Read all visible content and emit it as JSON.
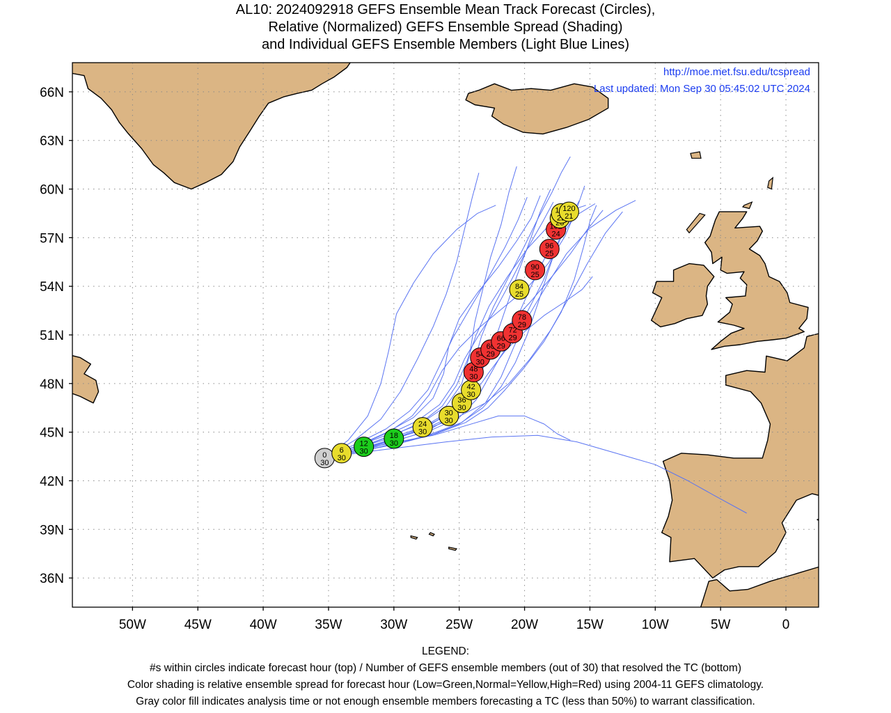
{
  "title": {
    "line1": "AL10: 2024092918 GEFS Ensemble Mean Track Forecast (Circles),",
    "line2": "Relative (Normalized) GEFS Ensemble Spread (Shading)",
    "line3": "and Individual GEFS Ensemble Members (Light Blue Lines)"
  },
  "credits": {
    "url": "http://moe.met.fsu.edu/tcspread",
    "updated": "Last updated: Mon Sep 30 05:45:02 UTC 2024"
  },
  "axes": {
    "lat_ticks": [
      {
        "value": 66,
        "label": "66N"
      },
      {
        "value": 63,
        "label": "63N"
      },
      {
        "value": 60,
        "label": "60N"
      },
      {
        "value": 57,
        "label": "57N"
      },
      {
        "value": 54,
        "label": "54N"
      },
      {
        "value": 51,
        "label": "51N"
      },
      {
        "value": 48,
        "label": "48N"
      },
      {
        "value": 45,
        "label": "45N"
      },
      {
        "value": 42,
        "label": "42N"
      },
      {
        "value": 39,
        "label": "39N"
      },
      {
        "value": 36,
        "label": "36N"
      }
    ],
    "lon_ticks": [
      {
        "value": -50,
        "label": "50W"
      },
      {
        "value": -45,
        "label": "45W"
      },
      {
        "value": -40,
        "label": "40W"
      },
      {
        "value": -35,
        "label": "35W"
      },
      {
        "value": -30,
        "label": "30W"
      },
      {
        "value": -25,
        "label": "25W"
      },
      {
        "value": -20,
        "label": "20W"
      },
      {
        "value": -15,
        "label": "15W"
      },
      {
        "value": -10,
        "label": "10W"
      },
      {
        "value": -5,
        "label": "5W"
      },
      {
        "value": 0,
        "label": "0"
      }
    ],
    "lat_range": [
      34.2,
      67.8
    ],
    "lon_range": [
      -54.6,
      2.5
    ],
    "grid": "dotted"
  },
  "colors": {
    "land": "#dbb584",
    "ocean": "#ffffff",
    "member_tracks": "#5a74f2",
    "low": "#1ccd1c",
    "normal": "#e8dc2c",
    "high": "#f03232",
    "not_classified": "#d0d0d0",
    "credit_text": "#1b3cf0"
  },
  "chart_data": {
    "type": "scatter",
    "description_fields": [
      "hour",
      "members",
      "spread"
    ],
    "points": [
      {
        "hour": 0,
        "members": 30,
        "spread": "gray",
        "lat": 43.4,
        "lon": -35.3
      },
      {
        "hour": 6,
        "members": 30,
        "spread": "normal",
        "lat": 43.7,
        "lon": -34.0
      },
      {
        "hour": 12,
        "members": 30,
        "spread": "low",
        "lat": 44.1,
        "lon": -32.3
      },
      {
        "hour": 18,
        "members": 30,
        "spread": "low",
        "lat": 44.6,
        "lon": -30.0
      },
      {
        "hour": 24,
        "members": 30,
        "spread": "normal",
        "lat": 45.3,
        "lon": -27.8
      },
      {
        "hour": 30,
        "members": 30,
        "spread": "normal",
        "lat": 46.0,
        "lon": -25.8
      },
      {
        "hour": 36,
        "members": 30,
        "spread": "normal",
        "lat": 46.8,
        "lon": -24.8
      },
      {
        "hour": 42,
        "members": 30,
        "spread": "normal",
        "lat": 47.6,
        "lon": -24.1
      },
      {
        "hour": 48,
        "members": 30,
        "spread": "high",
        "lat": 48.7,
        "lon": -23.9
      },
      {
        "hour": 54,
        "members": 30,
        "spread": "high",
        "lat": 49.6,
        "lon": -23.4
      },
      {
        "hour": 60,
        "members": 29,
        "spread": "high",
        "lat": 50.1,
        "lon": -22.6
      },
      {
        "hour": 66,
        "members": 29,
        "spread": "high",
        "lat": 50.6,
        "lon": -21.8
      },
      {
        "hour": 72,
        "members": 29,
        "spread": "high",
        "lat": 51.1,
        "lon": -20.9
      },
      {
        "hour": 78,
        "members": 29,
        "spread": "high",
        "lat": 51.9,
        "lon": -20.2
      },
      {
        "hour": 84,
        "members": 25,
        "spread": "normal",
        "lat": 53.8,
        "lon": -20.4
      },
      {
        "hour": 90,
        "members": 25,
        "spread": "high",
        "lat": 55.0,
        "lon": -19.2
      },
      {
        "hour": 96,
        "members": 25,
        "spread": "high",
        "lat": 56.3,
        "lon": -18.1
      },
      {
        "hour": 102,
        "members": 24,
        "spread": "high",
        "lat": 57.5,
        "lon": -17.6
      },
      {
        "hour": 108,
        "members": 23,
        "spread": "normal",
        "lat": 58.2,
        "lon": -17.3
      },
      {
        "hour": 114,
        "members": 22,
        "spread": "normal",
        "lat": 58.5,
        "lon": -17.2
      },
      {
        "hour": 120,
        "members": 21,
        "spread": "normal",
        "lat": 58.6,
        "lon": -16.6
      }
    ],
    "ensemble_members": [
      [
        [
          -35.3,
          43.4
        ],
        [
          -32.5,
          44.1
        ],
        [
          -30.0,
          44.7
        ],
        [
          -27.5,
          45.4
        ],
        [
          -25.5,
          46.2
        ],
        [
          -24.5,
          47.2
        ],
        [
          -24.0,
          48.5
        ],
        [
          -23.2,
          49.8
        ],
        [
          -22.0,
          50.9
        ],
        [
          -20.5,
          52.2
        ],
        [
          -19.5,
          54.0
        ],
        [
          -18.3,
          56.0
        ],
        [
          -17.5,
          57.8
        ],
        [
          -16.5,
          58.8
        ]
      ],
      [
        [
          -35.3,
          43.4
        ],
        [
          -32.3,
          44.0
        ],
        [
          -29.8,
          44.5
        ],
        [
          -27.2,
          45.1
        ],
        [
          -25.0,
          45.9
        ],
        [
          -23.7,
          47.0
        ],
        [
          -22.8,
          48.3
        ],
        [
          -21.9,
          49.6
        ],
        [
          -20.8,
          50.9
        ],
        [
          -19.8,
          52.4
        ],
        [
          -18.6,
          54.3
        ],
        [
          -17.6,
          56.3
        ],
        [
          -16.6,
          58.1
        ],
        [
          -15.8,
          59.3
        ]
      ],
      [
        [
          -35.3,
          43.4
        ],
        [
          -32.6,
          44.2
        ],
        [
          -30.3,
          44.9
        ],
        [
          -28.2,
          45.7
        ],
        [
          -26.5,
          46.7
        ],
        [
          -25.4,
          48.0
        ],
        [
          -24.6,
          49.5
        ],
        [
          -23.5,
          51.0
        ],
        [
          -22.2,
          52.6
        ],
        [
          -21.0,
          54.4
        ],
        [
          -19.8,
          56.3
        ],
        [
          -18.6,
          58.0
        ],
        [
          -17.8,
          59.2
        ]
      ],
      [
        [
          -35.3,
          43.4
        ],
        [
          -32.0,
          43.9
        ],
        [
          -29.5,
          44.4
        ],
        [
          -26.8,
          44.9
        ],
        [
          -24.5,
          45.6
        ],
        [
          -22.8,
          46.5
        ],
        [
          -21.5,
          47.6
        ],
        [
          -20.0,
          49.0
        ],
        [
          -18.5,
          50.6
        ],
        [
          -17.2,
          52.4
        ],
        [
          -16.2,
          54.4
        ],
        [
          -15.5,
          56.4
        ],
        [
          -15.0,
          58.0
        ],
        [
          -14.5,
          59.0
        ]
      ],
      [
        [
          -35.3,
          43.4
        ],
        [
          -32.8,
          44.3
        ],
        [
          -30.6,
          45.2
        ],
        [
          -28.8,
          46.3
        ],
        [
          -27.4,
          47.6
        ],
        [
          -26.5,
          49.1
        ],
        [
          -25.5,
          50.8
        ],
        [
          -24.2,
          52.6
        ],
        [
          -22.8,
          54.5
        ],
        [
          -21.5,
          56.4
        ],
        [
          -20.5,
          58.1
        ],
        [
          -19.8,
          59.5
        ]
      ],
      [
        [
          -35.3,
          43.4
        ],
        [
          -32.4,
          44.0
        ],
        [
          -30.0,
          44.6
        ],
        [
          -27.5,
          45.2
        ],
        [
          -25.2,
          45.9
        ],
        [
          -23.0,
          46.8
        ],
        [
          -21.2,
          48.0
        ],
        [
          -19.6,
          49.5
        ],
        [
          -18.0,
          51.3
        ],
        [
          -16.6,
          53.3
        ],
        [
          -15.2,
          55.4
        ],
        [
          -13.8,
          57.3
        ],
        [
          -12.5,
          58.6
        ]
      ],
      [
        [
          -35.3,
          43.4
        ],
        [
          -33.0,
          44.5
        ],
        [
          -31.0,
          45.8
        ],
        [
          -29.5,
          47.5
        ],
        [
          -28.2,
          49.5
        ],
        [
          -27.0,
          51.5
        ],
        [
          -26.0,
          53.5
        ],
        [
          -25.2,
          55.5
        ],
        [
          -24.6,
          57.5
        ],
        [
          -24.0,
          59.5
        ],
        [
          -23.5,
          61.0
        ]
      ],
      [
        [
          -35.3,
          43.4
        ],
        [
          -33.5,
          44.5
        ],
        [
          -32.0,
          46.0
        ],
        [
          -31.0,
          48.0
        ],
        [
          -30.4,
          50.0
        ],
        [
          -29.8,
          52.3
        ],
        [
          -28.5,
          54.2
        ],
        [
          -27.0,
          56.0
        ],
        [
          -25.2,
          57.5
        ],
        [
          -23.6,
          58.5
        ],
        [
          -22.2,
          59.0
        ]
      ],
      [
        [
          -35.3,
          43.4
        ],
        [
          -32.2,
          44.0
        ],
        [
          -29.7,
          44.4
        ],
        [
          -27.0,
          44.8
        ],
        [
          -24.5,
          45.4
        ],
        [
          -22.0,
          46.0
        ],
        [
          -20.0,
          46.0
        ],
        [
          -18.5,
          45.5
        ],
        [
          -17.5,
          44.9
        ],
        [
          -16.5,
          44.5
        ]
      ],
      [
        [
          -35.3,
          43.4
        ],
        [
          -32.0,
          43.8
        ],
        [
          -29.0,
          44.1
        ],
        [
          -26.0,
          44.4
        ],
        [
          -22.5,
          44.7
        ],
        [
          -19.0,
          44.8
        ],
        [
          -16.0,
          44.4
        ],
        [
          -13.0,
          43.7
        ],
        [
          -10.0,
          43.0
        ],
        [
          -7.5,
          42.0
        ],
        [
          -5.5,
          41.1
        ],
        [
          -3.0,
          40.0
        ]
      ],
      [
        [
          -35.3,
          43.4
        ],
        [
          -32.5,
          44.1
        ],
        [
          -30.2,
          44.8
        ],
        [
          -28.0,
          45.5
        ],
        [
          -26.0,
          46.6
        ],
        [
          -24.8,
          48.0
        ],
        [
          -24.2,
          49.8
        ],
        [
          -23.8,
          51.8
        ],
        [
          -23.2,
          53.8
        ],
        [
          -22.6,
          55.8
        ],
        [
          -21.8,
          57.8
        ],
        [
          -21.2,
          59.8
        ],
        [
          -20.6,
          61.4
        ]
      ],
      [
        [
          -35.3,
          43.4
        ],
        [
          -32.1,
          43.9
        ],
        [
          -29.6,
          44.3
        ],
        [
          -27.1,
          44.9
        ],
        [
          -24.8,
          45.6
        ],
        [
          -23.0,
          46.8
        ],
        [
          -21.8,
          48.4
        ],
        [
          -20.8,
          50.3
        ],
        [
          -19.6,
          52.3
        ],
        [
          -18.2,
          54.2
        ],
        [
          -16.8,
          56.0
        ],
        [
          -15.0,
          57.6
        ],
        [
          -13.0,
          58.7
        ],
        [
          -11.5,
          59.3
        ]
      ],
      [
        [
          -35.3,
          43.4
        ],
        [
          -32.3,
          44.0
        ],
        [
          -29.9,
          44.6
        ],
        [
          -27.8,
          45.3
        ],
        [
          -25.9,
          46.2
        ],
        [
          -24.6,
          47.4
        ],
        [
          -23.8,
          48.8
        ],
        [
          -22.6,
          50.2
        ],
        [
          -21.2,
          51.6
        ],
        [
          -19.6,
          53.0
        ],
        [
          -18.0,
          54.5
        ],
        [
          -16.5,
          56.0
        ],
        [
          -15.2,
          57.5
        ],
        [
          -14.0,
          58.7
        ]
      ],
      [
        [
          -35.3,
          43.4
        ],
        [
          -32.7,
          44.2
        ],
        [
          -30.5,
          45.0
        ],
        [
          -28.5,
          45.9
        ],
        [
          -27.0,
          47.1
        ],
        [
          -26.2,
          48.6
        ],
        [
          -25.8,
          50.3
        ],
        [
          -25.0,
          52.0
        ],
        [
          -23.6,
          53.6
        ],
        [
          -22.0,
          55.2
        ],
        [
          -20.6,
          56.8
        ],
        [
          -19.5,
          58.2
        ],
        [
          -18.8,
          59.6
        ]
      ],
      [
        [
          -35.3,
          43.4
        ],
        [
          -32.2,
          43.9
        ],
        [
          -29.7,
          44.5
        ],
        [
          -27.4,
          45.1
        ],
        [
          -25.5,
          46.0
        ],
        [
          -24.2,
          47.3
        ],
        [
          -23.2,
          48.9
        ],
        [
          -22.3,
          50.6
        ],
        [
          -21.5,
          52.5
        ],
        [
          -20.6,
          54.6
        ],
        [
          -19.6,
          56.8
        ],
        [
          -18.8,
          58.6
        ],
        [
          -18.0,
          60.0
        ]
      ],
      [
        [
          -35.3,
          43.4
        ],
        [
          -32.4,
          44.0
        ],
        [
          -30.0,
          44.6
        ],
        [
          -27.6,
          45.2
        ],
        [
          -25.5,
          46.0
        ],
        [
          -24.0,
          47.2
        ],
        [
          -22.8,
          48.6
        ],
        [
          -21.5,
          50.0
        ],
        [
          -20.0,
          51.2
        ],
        [
          -18.5,
          52.2
        ],
        [
          -17.0,
          53.0
        ],
        [
          -15.6,
          53.8
        ],
        [
          -14.8,
          54.6
        ]
      ],
      [
        [
          -35.3,
          43.4
        ],
        [
          -32.5,
          44.1
        ],
        [
          -30.1,
          44.8
        ],
        [
          -27.9,
          45.6
        ],
        [
          -26.3,
          46.6
        ],
        [
          -25.2,
          47.9
        ],
        [
          -24.4,
          49.4
        ],
        [
          -23.7,
          51.0
        ],
        [
          -22.7,
          52.8
        ],
        [
          -21.3,
          54.6
        ],
        [
          -19.8,
          56.3
        ],
        [
          -18.2,
          57.7
        ],
        [
          -16.8,
          58.6
        ],
        [
          -15.3,
          59.0
        ]
      ],
      [
        [
          -35.3,
          43.4
        ],
        [
          -32.1,
          43.9
        ],
        [
          -29.6,
          44.3
        ],
        [
          -27.2,
          44.8
        ],
        [
          -25.0,
          45.5
        ],
        [
          -23.2,
          46.5
        ],
        [
          -21.8,
          47.8
        ],
        [
          -20.7,
          49.3
        ],
        [
          -19.8,
          51.0
        ],
        [
          -19.0,
          52.9
        ],
        [
          -18.2,
          54.9
        ],
        [
          -17.4,
          56.8
        ],
        [
          -16.2,
          58.3
        ],
        [
          -14.6,
          59.1
        ]
      ],
      [
        [
          -35.3,
          43.4
        ],
        [
          -32.6,
          44.2
        ],
        [
          -30.4,
          45.0
        ],
        [
          -28.6,
          46.0
        ],
        [
          -27.3,
          47.3
        ],
        [
          -26.3,
          48.8
        ],
        [
          -25.0,
          50.2
        ],
        [
          -23.4,
          51.5
        ],
        [
          -21.6,
          52.7
        ],
        [
          -19.8,
          53.9
        ],
        [
          -18.2,
          55.4
        ],
        [
          -16.9,
          57.1
        ],
        [
          -16.0,
          58.8
        ],
        [
          -15.4,
          60.2
        ]
      ],
      [
        [
          -35.3,
          43.4
        ],
        [
          -32.3,
          44.0
        ],
        [
          -29.8,
          44.6
        ],
        [
          -27.5,
          45.3
        ],
        [
          -25.6,
          46.3
        ],
        [
          -24.5,
          47.6
        ],
        [
          -23.9,
          49.2
        ],
        [
          -23.3,
          50.9
        ],
        [
          -22.4,
          52.7
        ],
        [
          -21.2,
          54.6
        ],
        [
          -20.0,
          56.5
        ],
        [
          -18.9,
          58.3
        ],
        [
          -17.9,
          59.8
        ],
        [
          -17.2,
          61.0
        ],
        [
          -16.5,
          62.0
        ]
      ]
    ]
  },
  "legend": {
    "heading": "LEGEND:",
    "line1": "#s within circles indicate forecast hour (top) / Number of GEFS ensemble members (out of 30) that resolved the TC (bottom)",
    "line2": "Color shading is relative ensemble spread for forecast hour (Low=Green,Normal=Yellow,High=Red) using 2004-11 GEFS climatology.",
    "line3": "Gray color fill indicates analysis time or not enough ensemble members forecasting a TC (less than 50%) to warrant classification."
  }
}
